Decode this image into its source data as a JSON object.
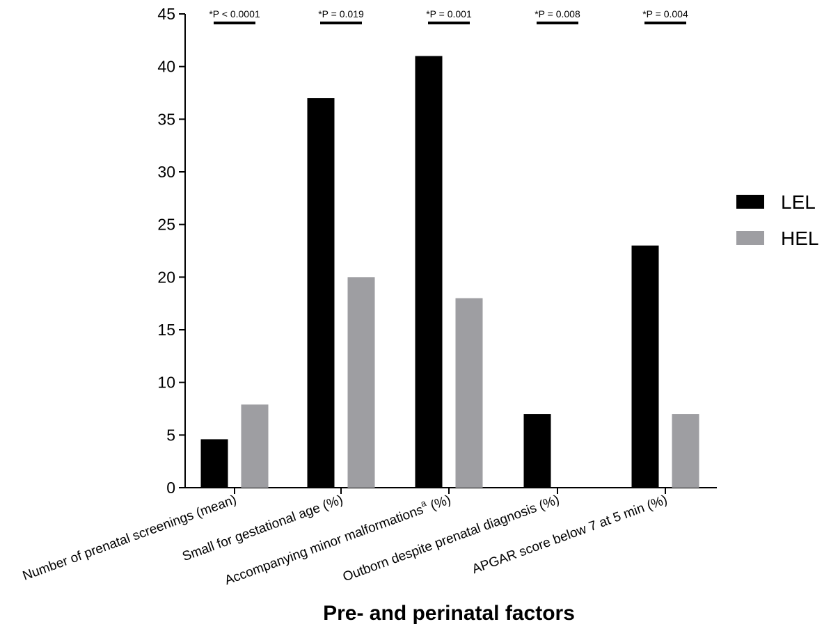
{
  "chart_data": {
    "type": "bar",
    "xlabel": "Pre- and perinatal factors",
    "ylabel": "",
    "ylim": [
      0,
      45
    ],
    "yticks": [
      0,
      5,
      10,
      15,
      20,
      25,
      30,
      35,
      40,
      45
    ],
    "categories": [
      "Number of prenatal screenings (mean)",
      "Small for gestational age (%)",
      "Accompanying minor malformations",
      "Outborn despite prenatal diagnosis (%)",
      "APGAR score below 7 at 5 min (%)"
    ],
    "category_superscript": [
      "",
      "",
      "a",
      "",
      ""
    ],
    "category_suffix": [
      "",
      "",
      " (%)",
      "",
      ""
    ],
    "series": [
      {
        "name": "LEL",
        "color": "#000000",
        "values": [
          4.6,
          37,
          41,
          7,
          23
        ]
      },
      {
        "name": "HEL",
        "color": "#9e9ea2",
        "values": [
          7.9,
          20,
          18,
          0,
          7
        ]
      }
    ],
    "significance": [
      "*P < 0.0001",
      "*P = 0.019",
      "*P = 0.001",
      "*P = 0.008",
      "*P = 0.004"
    ],
    "legend_position": "right",
    "grid": false
  }
}
